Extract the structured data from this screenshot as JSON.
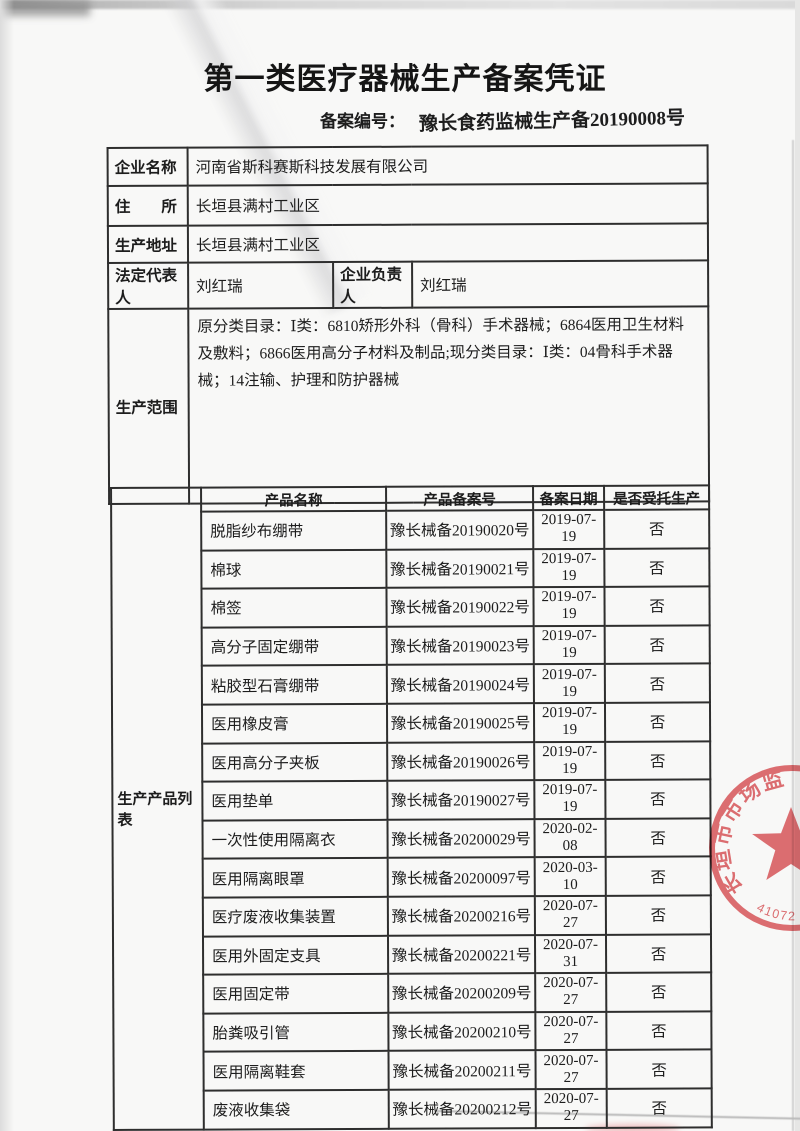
{
  "page": {
    "title": "第一类医疗器械生产备案凭证",
    "filing": {
      "label": "备案编号：",
      "value": "豫长食药监械生产备20190008号"
    }
  },
  "info_table": {
    "rows": [
      {
        "label": "企业名称",
        "value": "河南省斯科赛斯科技发展有限公司"
      },
      {
        "label": "住　　所",
        "value": "长垣县满村工业区"
      },
      {
        "label": "生产地址",
        "value": "长垣县满村工业区"
      },
      {
        "label": "法定代表人",
        "value": "刘红瑞",
        "label2": "企业负责人",
        "value2": "刘红瑞"
      },
      {
        "label": "生产范围",
        "value": "原分类目录：Ⅰ类：6810矫形外科（骨科）手术器械；6864医用卫生材料及敷料；6866医用高分子材料及制品;现分类目录：Ⅰ类：04骨科手术器械；14注输、护理和防护器械"
      }
    ]
  },
  "product_table": {
    "section_label": "生产产品列表",
    "headers": [
      "产品名称",
      "产品备案号",
      "备案日期",
      "是否受托生产"
    ],
    "rows": [
      [
        "脱脂纱布绷带",
        "豫长械备20190020号",
        "2019-07-19",
        "否"
      ],
      [
        "棉球",
        "豫长械备20190021号",
        "2019-07-19",
        "否"
      ],
      [
        "棉签",
        "豫长械备20190022号",
        "2019-07-19",
        "否"
      ],
      [
        "高分子固定绷带",
        "豫长械备20190023号",
        "2019-07-19",
        "否"
      ],
      [
        "粘胶型石膏绷带",
        "豫长械备20190024号",
        "2019-07-19",
        "否"
      ],
      [
        "医用橡皮膏",
        "豫长械备20190025号",
        "2019-07-19",
        "否"
      ],
      [
        "医用高分子夹板",
        "豫长械备20190026号",
        "2019-07-19",
        "否"
      ],
      [
        "医用垫单",
        "豫长械备20190027号",
        "2019-07-19",
        "否"
      ],
      [
        "一次性使用隔离衣",
        "豫长械备20200029号",
        "2020-02-08",
        "否"
      ],
      [
        "医用隔离眼罩",
        "豫长械备20200097号",
        "2020-03-10",
        "否"
      ],
      [
        "医疗废液收集装置",
        "豫长械备20200216号",
        "2020-07-27",
        "否"
      ],
      [
        "医用外固定支具",
        "豫长械备20200221号",
        "2020-07-31",
        "否"
      ],
      [
        "医用固定带",
        "豫长械备20200209号",
        "2020-07-27",
        "否"
      ],
      [
        "胎粪吸引管",
        "豫长械备20200210号",
        "2020-07-27",
        "否"
      ],
      [
        "医用隔离鞋套",
        "豫长械备20200211号",
        "2020-07-27",
        "否"
      ],
      [
        "废液收集袋",
        "豫长械备20200212号",
        "2020-07-27",
        "否"
      ]
    ]
  },
  "stamp": {
    "arc_text": "长垣市市场监",
    "code": "41072",
    "color": "#dd575c"
  }
}
